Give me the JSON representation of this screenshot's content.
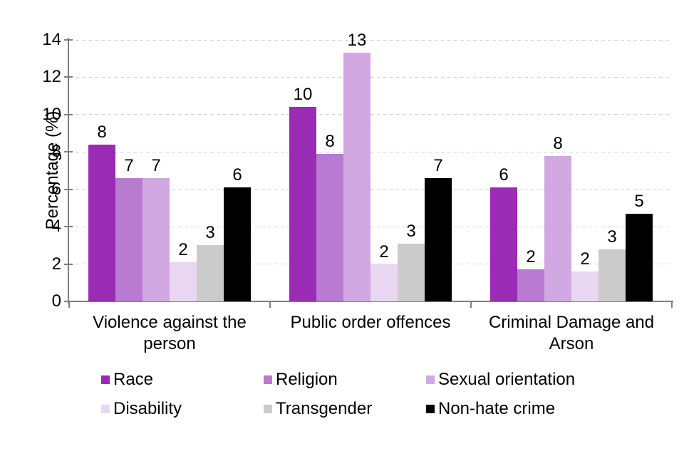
{
  "chart_data": {
    "type": "bar",
    "ylabel": "Percentage (%)",
    "ylim": [
      0,
      14
    ],
    "ytick_step": 2,
    "grid": "horizontal-dashed",
    "legend_position": "bottom",
    "categories": [
      "Violence against the person",
      "Public order offences",
      "Criminal Damage and Arson"
    ],
    "series": [
      {
        "name": "Race",
        "color": "#9a2bb5",
        "values": [
          8.4,
          10.4,
          6.1
        ],
        "bar_labels": [
          "8",
          "10",
          "6"
        ]
      },
      {
        "name": "Religion",
        "color": "#b97ad2",
        "values": [
          6.6,
          7.9,
          1.7
        ],
        "bar_labels": [
          "7",
          "8",
          "2"
        ]
      },
      {
        "name": "Sexual orientation",
        "color": "#d2a8e2",
        "values": [
          6.6,
          13.3,
          7.8
        ],
        "bar_labels": [
          "7",
          "13",
          "8"
        ]
      },
      {
        "name": "Disability",
        "color": "#e9d7f2",
        "values": [
          2.1,
          2.0,
          1.6
        ],
        "bar_labels": [
          "2",
          "2",
          "2"
        ]
      },
      {
        "name": "Transgender",
        "color": "#cbcbcb",
        "values": [
          3.0,
          3.1,
          2.8
        ],
        "bar_labels": [
          "3",
          "3",
          "3"
        ]
      },
      {
        "name": "Non-hate crime",
        "color": "#000000",
        "values": [
          6.1,
          6.6,
          4.7
        ],
        "bar_labels": [
          "6",
          "7",
          "5"
        ]
      }
    ]
  }
}
